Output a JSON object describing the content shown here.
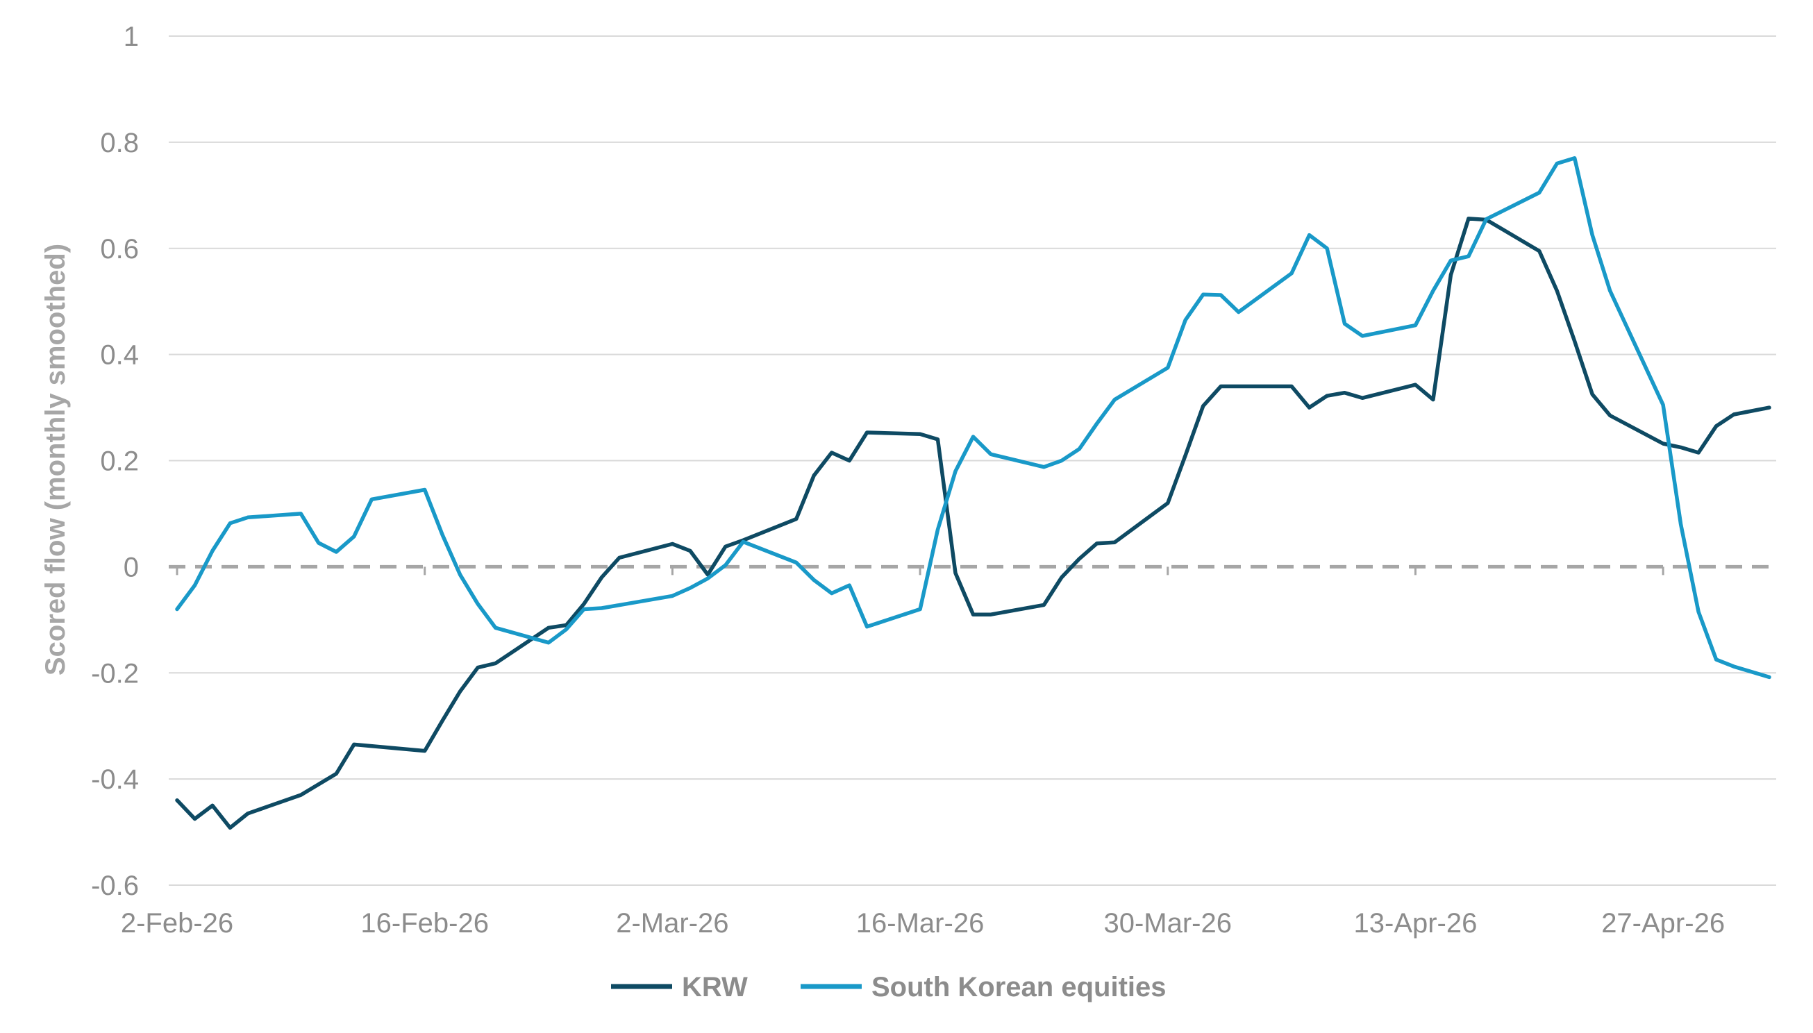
{
  "chart_data": {
    "type": "line",
    "title": "",
    "xlabel": "",
    "ylabel": "Scored flow (monthly smoothed)",
    "ylim": [
      -0.6,
      1
    ],
    "yticks": [
      "1",
      "0.8",
      "0.6",
      "0.4",
      "0.2",
      "0",
      "-0.2",
      "-0.4",
      "-0.6"
    ],
    "xlim": [
      "2026-02-02",
      "2026-05-03"
    ],
    "xtick_labels": [
      "2-Feb-26",
      "16-Feb-26",
      "2-Mar-26",
      "16-Mar-26",
      "30-Mar-26",
      "13-Apr-26",
      "27-Apr-26"
    ],
    "xtick_dates": [
      "2026-02-02",
      "2026-02-16",
      "2026-03-02",
      "2026-03-16",
      "2026-03-30",
      "2026-04-13",
      "2026-04-27"
    ],
    "grid": true,
    "zero_line": "dashed",
    "legend": "bottom",
    "colors": {
      "KRW": "#0e4a63",
      "South Korean equities": "#1999c8",
      "grid": "#d9d9d9",
      "zero": "#a6a6a6"
    },
    "series": [
      {
        "name": "KRW",
        "points": [
          [
            "2026-02-02",
            -0.44
          ],
          [
            "2026-02-03",
            -0.475
          ],
          [
            "2026-02-04",
            -0.45
          ],
          [
            "2026-02-05",
            -0.492
          ],
          [
            "2026-02-06",
            -0.465
          ],
          [
            "2026-02-09",
            -0.43
          ],
          [
            "2026-02-11",
            -0.39
          ],
          [
            "2026-02-12",
            -0.335
          ],
          [
            "2026-02-16",
            -0.347
          ],
          [
            "2026-02-17",
            -0.29
          ],
          [
            "2026-02-18",
            -0.235
          ],
          [
            "2026-02-19",
            -0.19
          ],
          [
            "2026-02-20",
            -0.182
          ],
          [
            "2026-02-23",
            -0.115
          ],
          [
            "2026-02-24",
            -0.11
          ],
          [
            "2026-02-25",
            -0.07
          ],
          [
            "2026-02-26",
            -0.02
          ],
          [
            "2026-02-27",
            0.017
          ],
          [
            "2026-03-02",
            0.043
          ],
          [
            "2026-03-03",
            0.03
          ],
          [
            "2026-03-04",
            -0.015
          ],
          [
            "2026-03-05",
            0.038
          ],
          [
            "2026-03-06",
            0.05
          ],
          [
            "2026-03-09",
            0.09
          ],
          [
            "2026-03-10",
            0.172
          ],
          [
            "2026-03-11",
            0.215
          ],
          [
            "2026-03-12",
            0.2
          ],
          [
            "2026-03-13",
            0.253
          ],
          [
            "2026-03-16",
            0.25
          ],
          [
            "2026-03-17",
            0.24
          ],
          [
            "2026-03-18",
            -0.012
          ],
          [
            "2026-03-19",
            -0.09
          ],
          [
            "2026-03-20",
            -0.09
          ],
          [
            "2026-03-23",
            -0.072
          ],
          [
            "2026-03-24",
            -0.02
          ],
          [
            "2026-03-25",
            0.015
          ],
          [
            "2026-03-26",
            0.044
          ],
          [
            "2026-03-27",
            0.046
          ],
          [
            "2026-03-30",
            0.12
          ],
          [
            "2026-03-31",
            0.21
          ],
          [
            "2026-04-01",
            0.303
          ],
          [
            "2026-04-02",
            0.34
          ],
          [
            "2026-04-06",
            0.34
          ],
          [
            "2026-04-07",
            0.3
          ],
          [
            "2026-04-08",
            0.322
          ],
          [
            "2026-04-09",
            0.328
          ],
          [
            "2026-04-10",
            0.318
          ],
          [
            "2026-04-13",
            0.343
          ],
          [
            "2026-04-14",
            0.315
          ],
          [
            "2026-04-15",
            0.55
          ],
          [
            "2026-04-16",
            0.656
          ],
          [
            "2026-04-17",
            0.654
          ],
          [
            "2026-04-20",
            0.595
          ],
          [
            "2026-04-21",
            0.52
          ],
          [
            "2026-04-22",
            0.425
          ],
          [
            "2026-04-23",
            0.325
          ],
          [
            "2026-04-24",
            0.285
          ],
          [
            "2026-04-27",
            0.232
          ],
          [
            "2026-04-28",
            0.225
          ],
          [
            "2026-04-29",
            0.215
          ],
          [
            "2026-04-30",
            0.265
          ],
          [
            "2026-05-01",
            0.287
          ],
          [
            "2026-05-03",
            0.3
          ]
        ]
      },
      {
        "name": "South Korean equities",
        "points": [
          [
            "2026-02-02",
            -0.08
          ],
          [
            "2026-02-03",
            -0.035
          ],
          [
            "2026-02-04",
            0.03
          ],
          [
            "2026-02-05",
            0.082
          ],
          [
            "2026-02-06",
            0.093
          ],
          [
            "2026-02-09",
            0.1
          ],
          [
            "2026-02-10",
            0.045
          ],
          [
            "2026-02-11",
            0.028
          ],
          [
            "2026-02-12",
            0.057
          ],
          [
            "2026-02-13",
            0.127
          ],
          [
            "2026-02-16",
            0.145
          ],
          [
            "2026-02-17",
            0.06
          ],
          [
            "2026-02-18",
            -0.015
          ],
          [
            "2026-02-19",
            -0.07
          ],
          [
            "2026-02-20",
            -0.115
          ],
          [
            "2026-02-23",
            -0.143
          ],
          [
            "2026-02-24",
            -0.118
          ],
          [
            "2026-02-25",
            -0.08
          ],
          [
            "2026-02-26",
            -0.078
          ],
          [
            "2026-03-02",
            -0.055
          ],
          [
            "2026-03-03",
            -0.04
          ],
          [
            "2026-03-04",
            -0.022
          ],
          [
            "2026-03-05",
            0.003
          ],
          [
            "2026-03-06",
            0.047
          ],
          [
            "2026-03-09",
            0.008
          ],
          [
            "2026-03-10",
            -0.025
          ],
          [
            "2026-03-11",
            -0.05
          ],
          [
            "2026-03-12",
            -0.035
          ],
          [
            "2026-03-13",
            -0.113
          ],
          [
            "2026-03-16",
            -0.08
          ],
          [
            "2026-03-17",
            0.07
          ],
          [
            "2026-03-18",
            0.18
          ],
          [
            "2026-03-19",
            0.245
          ],
          [
            "2026-03-20",
            0.212
          ],
          [
            "2026-03-23",
            0.188
          ],
          [
            "2026-03-24",
            0.2
          ],
          [
            "2026-03-25",
            0.222
          ],
          [
            "2026-03-26",
            0.27
          ],
          [
            "2026-03-27",
            0.315
          ],
          [
            "2026-03-30",
            0.375
          ],
          [
            "2026-03-31",
            0.465
          ],
          [
            "2026-04-01",
            0.513
          ],
          [
            "2026-04-02",
            0.512
          ],
          [
            "2026-04-03",
            0.48
          ],
          [
            "2026-04-06",
            0.553
          ],
          [
            "2026-04-07",
            0.625
          ],
          [
            "2026-04-08",
            0.6
          ],
          [
            "2026-04-09",
            0.458
          ],
          [
            "2026-04-10",
            0.435
          ],
          [
            "2026-04-13",
            0.455
          ],
          [
            "2026-04-14",
            0.52
          ],
          [
            "2026-04-15",
            0.577
          ],
          [
            "2026-04-16",
            0.585
          ],
          [
            "2026-04-17",
            0.655
          ],
          [
            "2026-04-20",
            0.705
          ],
          [
            "2026-04-21",
            0.76
          ],
          [
            "2026-04-22",
            0.77
          ],
          [
            "2026-04-23",
            0.625
          ],
          [
            "2026-04-24",
            0.52
          ],
          [
            "2026-04-27",
            0.305
          ],
          [
            "2026-04-28",
            0.08
          ],
          [
            "2026-04-29",
            -0.085
          ],
          [
            "2026-04-30",
            -0.175
          ],
          [
            "2026-05-01",
            -0.188
          ],
          [
            "2026-05-03",
            -0.208
          ]
        ]
      }
    ]
  }
}
